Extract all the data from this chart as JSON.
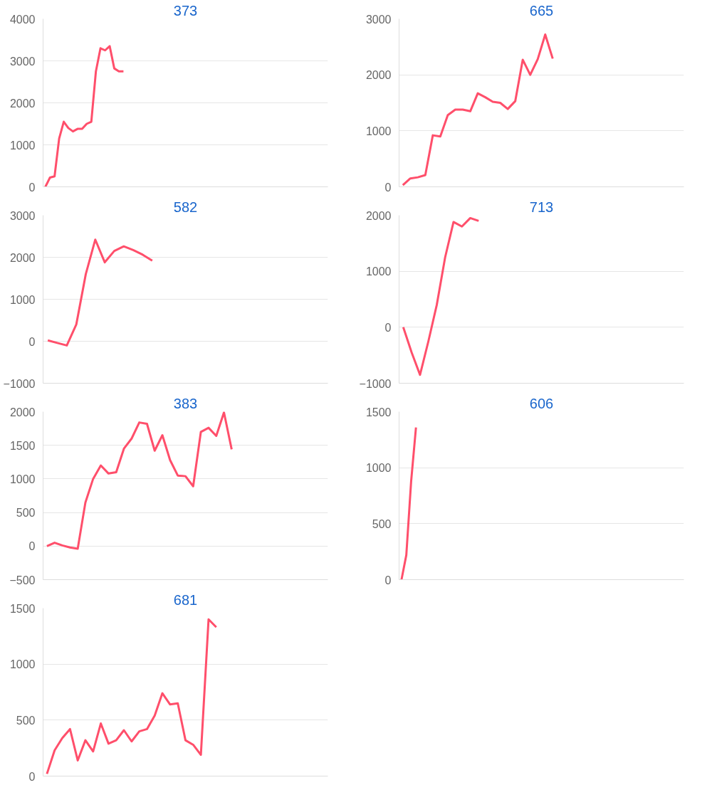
{
  "chart_data": [
    {
      "type": "line",
      "title": "373",
      "color": "#ff4f6b",
      "grid": "y",
      "tick_labels": "y",
      "ylim": [
        0,
        4000
      ],
      "yticks": [
        0,
        1000,
        2000,
        3000,
        4000
      ],
      "values": [
        0,
        220,
        250,
        1150,
        1550,
        1400,
        1320,
        1380,
        1380,
        1500,
        1550,
        2750,
        3300,
        3250,
        3350,
        2820,
        2750,
        2750,
        null,
        null,
        null,
        null,
        null,
        null,
        null,
        null,
        null,
        null,
        null,
        null,
        null,
        null,
        null,
        null,
        null,
        null,
        null,
        null,
        null,
        null,
        null,
        null,
        null,
        null,
        null,
        null,
        null,
        null,
        null,
        null,
        null,
        null,
        null,
        null,
        null,
        null,
        null,
        null,
        null,
        null,
        null,
        null
      ],
      "categories": [
        null,
        null,
        null,
        null,
        null,
        null,
        null,
        null,
        null,
        null,
        null,
        null,
        null,
        null,
        null,
        null,
        null,
        null,
        null,
        null,
        null,
        null,
        null,
        null,
        null,
        null,
        null,
        null,
        null,
        null,
        null,
        null,
        null,
        null,
        null,
        null,
        null,
        null,
        null,
        null,
        null,
        null,
        null,
        null,
        null,
        null,
        null,
        null,
        null,
        null,
        null,
        null,
        null,
        null,
        null,
        null,
        null,
        null,
        null,
        null,
        null,
        null
      ]
    },
    {
      "type": "line",
      "title": "665",
      "color": "#ff4f6b",
      "grid": "y",
      "tick_labels": "y",
      "ylim": [
        0,
        3000
      ],
      "yticks": [
        0,
        1000,
        2000,
        3000
      ],
      "values": [
        30,
        150,
        170,
        210,
        920,
        900,
        1280,
        1380,
        1380,
        1350,
        1670,
        1600,
        1520,
        1500,
        1390,
        1530,
        2270,
        2000,
        2280,
        2720,
        2290,
        null,
        null,
        null,
        null,
        null,
        null,
        null,
        null,
        null,
        null,
        null,
        null,
        null,
        null,
        null,
        null,
        null
      ],
      "categories": [
        null,
        null,
        null,
        null,
        null,
        null,
        null,
        null,
        null,
        null,
        null,
        null,
        null,
        null,
        null,
        null,
        null,
        null,
        null,
        null,
        null,
        null,
        null,
        null,
        null,
        null,
        null,
        null,
        null,
        null,
        null,
        null,
        null,
        null,
        null,
        null,
        null,
        null
      ]
    },
    {
      "type": "line",
      "title": "582",
      "color": "#ff4f6b",
      "grid": "y",
      "tick_labels": "y",
      "ylim": [
        -1000,
        3000
      ],
      "yticks": [
        -1000,
        0,
        1000,
        2000,
        3000
      ],
      "values": [
        20,
        -40,
        -100,
        400,
        1600,
        2420,
        1880,
        2150,
        2260,
        2170,
        2060,
        1920,
        null,
        null,
        null,
        null,
        null,
        null,
        null,
        null,
        null,
        null,
        null,
        null,
        null,
        null,
        null,
        null,
        null,
        null
      ],
      "categories": [
        null,
        null,
        null,
        null,
        null,
        null,
        null,
        null,
        null,
        null,
        null,
        null,
        null,
        null,
        null,
        null,
        null,
        null,
        null,
        null,
        null,
        null,
        null,
        null,
        null,
        null,
        null,
        null,
        null,
        null
      ]
    },
    {
      "type": "line",
      "title": "713",
      "color": "#ff4f6b",
      "grid": "y",
      "tick_labels": "y",
      "ylim": [
        -1000,
        2000
      ],
      "yticks": [
        -1000,
        0,
        1000,
        2000
      ],
      "values": [
        0,
        -450,
        -850,
        -250,
        400,
        1250,
        1880,
        1800,
        1950,
        1900,
        null,
        null,
        null,
        null,
        null,
        null,
        null,
        null,
        null,
        null,
        null,
        null,
        null,
        null,
        null,
        null,
        null,
        null,
        null,
        null,
        null,
        null,
        null,
        null
      ],
      "categories": [
        null,
        null,
        null,
        null,
        null,
        null,
        null,
        null,
        null,
        null,
        null,
        null,
        null,
        null,
        null,
        null,
        null,
        null,
        null,
        null,
        null,
        null,
        null,
        null,
        null,
        null,
        null,
        null,
        null,
        null,
        null,
        null,
        null,
        null
      ]
    },
    {
      "type": "line",
      "title": "383",
      "color": "#ff4f6b",
      "grid": "y",
      "tick_labels": "y",
      "ylim": [
        -500,
        2000
      ],
      "yticks": [
        -500,
        0,
        500,
        1000,
        1500,
        2000
      ],
      "values": [
        0,
        50,
        10,
        -20,
        -40,
        650,
        1000,
        1200,
        1080,
        1100,
        1450,
        1600,
        1840,
        1820,
        1420,
        1650,
        1280,
        1050,
        1040,
        890,
        1700,
        1760,
        1640,
        1990,
        1440,
        null,
        null,
        null,
        null,
        null,
        null,
        null,
        null,
        null,
        null,
        null,
        null
      ],
      "categories": [
        null,
        null,
        null,
        null,
        null,
        null,
        null,
        null,
        null,
        null,
        null,
        null,
        null,
        null,
        null,
        null,
        null,
        null,
        null,
        null,
        null,
        null,
        null,
        null,
        null,
        null,
        null,
        null,
        null,
        null,
        null,
        null,
        null,
        null,
        null,
        null,
        null
      ]
    },
    {
      "type": "line",
      "title": "606",
      "color": "#ff4f6b",
      "grid": "y",
      "tick_labels": "y",
      "ylim": [
        0,
        1500
      ],
      "yticks": [
        0,
        500,
        1000,
        1500
      ],
      "values": [
        0,
        220,
        880,
        1360,
        null,
        null,
        null,
        null,
        null,
        null,
        null,
        null,
        null,
        null,
        null,
        null,
        null,
        null,
        null,
        null,
        null,
        null,
        null,
        null,
        null,
        null,
        null,
        null,
        null,
        null,
        null,
        null,
        null,
        null,
        null,
        null,
        null,
        null,
        null,
        null,
        null,
        null,
        null,
        null,
        null,
        null,
        null,
        null,
        null,
        null,
        null,
        null,
        null,
        null,
        null,
        null,
        null,
        null,
        null
      ],
      "categories": [
        null,
        null,
        null,
        null,
        null,
        null,
        null,
        null,
        null,
        null,
        null,
        null,
        null,
        null,
        null,
        null,
        null,
        null,
        null,
        null,
        null,
        null,
        null,
        null,
        null,
        null,
        null,
        null,
        null,
        null,
        null,
        null,
        null,
        null,
        null,
        null,
        null,
        null,
        null,
        null,
        null,
        null,
        null,
        null,
        null,
        null,
        null,
        null,
        null,
        null,
        null,
        null,
        null,
        null,
        null,
        null,
        null,
        null,
        null
      ]
    },
    {
      "type": "line",
      "title": "681",
      "color": "#ff4f6b",
      "grid": "y",
      "tick_labels": "y",
      "ylim": [
        0,
        1500
      ],
      "yticks": [
        0,
        500,
        1000,
        1500
      ],
      "values": [
        20,
        230,
        340,
        420,
        140,
        320,
        220,
        470,
        290,
        320,
        410,
        310,
        400,
        420,
        540,
        740,
        640,
        650,
        320,
        280,
        190,
        1400,
        1330,
        null,
        null,
        null,
        null,
        null,
        null,
        null,
        null,
        null,
        null,
        null,
        null,
        null,
        null
      ],
      "categories": [
        null,
        null,
        null,
        null,
        null,
        null,
        null,
        null,
        null,
        null,
        null,
        null,
        null,
        null,
        null,
        null,
        null,
        null,
        null,
        null,
        null,
        null,
        null,
        null,
        null,
        null,
        null,
        null,
        null,
        null,
        null,
        null,
        null,
        null,
        null,
        null,
        null
      ]
    }
  ]
}
